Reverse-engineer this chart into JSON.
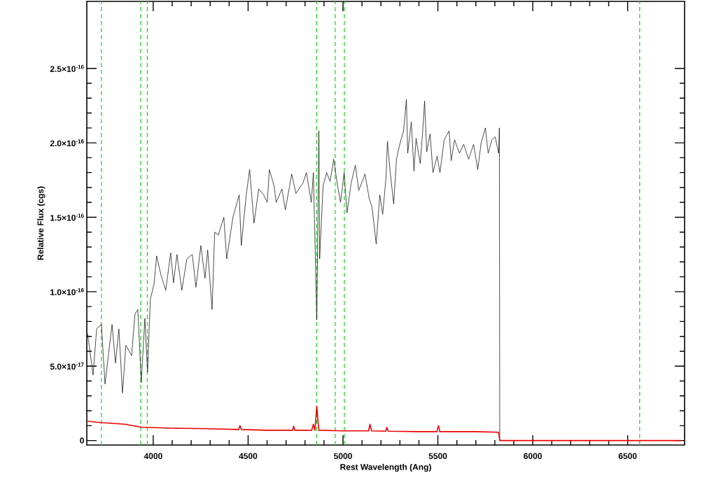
{
  "chart_data": {
    "type": "line",
    "xlabel": "Rest Wavelength (Ang)",
    "ylabel": "Relative Flux (cgs)",
    "xlim": [
      3650,
      6800
    ],
    "ylim": [
      -3e-18,
      2.95e-16
    ],
    "xticks": [
      4000,
      4500,
      5000,
      5500,
      6000,
      6500
    ],
    "yticks": [
      {
        "value": 0,
        "label": "0"
      },
      {
        "value": 5e-17,
        "label": "5.0×10$^{-17}$"
      },
      {
        "value": 1e-16,
        "label": "1.0×10$^{-16}$"
      },
      {
        "value": 1.5e-16,
        "label": "1.5×10$^{-16}$"
      },
      {
        "value": 2e-16,
        "label": "2.0×10$^{-16}$"
      },
      {
        "value": 2.5e-16,
        "label": "2.5×10$^{-16}$"
      }
    ],
    "grid": false,
    "marker": "none",
    "line_style": "solid",
    "ref_lines": [
      {
        "axis": "x",
        "value": 3727,
        "color": "#22dd22",
        "line_style": "dashed"
      },
      {
        "axis": "x",
        "value": 3934,
        "color": "#22dd22",
        "line_style": "dashed"
      },
      {
        "axis": "x",
        "value": 3969,
        "color": "#22dd22",
        "line_style": "dashed"
      },
      {
        "axis": "x",
        "value": 4861,
        "color": "#22dd22",
        "line_style": "dashed"
      },
      {
        "axis": "x",
        "value": 4959,
        "color": "#22dd22",
        "line_style": "dashed"
      },
      {
        "axis": "x",
        "value": 5007,
        "color": "#22dd22",
        "line_style": "dashed"
      },
      {
        "axis": "x",
        "value": 6563,
        "color": "#22dd22",
        "line_style": "dashed"
      }
    ],
    "series": [
      {
        "color": "#000000",
        "x": [
          3654,
          3683,
          3702,
          3727,
          3746,
          3783,
          3801,
          3819,
          3838,
          3856,
          3886,
          3904,
          3919,
          3937,
          3956,
          3970,
          3985,
          4004,
          4018,
          4041,
          4066,
          4092,
          4107,
          4125,
          4151,
          4177,
          4206,
          4225,
          4251,
          4273,
          4287,
          4310,
          4324,
          4343,
          4372,
          4387,
          4420,
          4453,
          4464,
          4490,
          4508,
          4531,
          4556,
          4582,
          4601,
          4612,
          4637,
          4648,
          4678,
          4696,
          4730,
          4752,
          4789,
          4807,
          4833,
          4844,
          4862,
          4873,
          4877,
          4895,
          4914,
          4932,
          4951,
          4969,
          4987,
          5006,
          5021,
          5043,
          5065,
          5083,
          5116,
          5139,
          5153,
          5168,
          5175,
          5194,
          5209,
          5227,
          5234,
          5249,
          5267,
          5282,
          5301,
          5319,
          5334,
          5341,
          5360,
          5374,
          5385,
          5407,
          5419,
          5430,
          5441,
          5459,
          5474,
          5496,
          5511,
          5533,
          5559,
          5570,
          5588,
          5614,
          5636,
          5662,
          5688,
          5710,
          5728,
          5750,
          5765,
          5784,
          5802,
          5820,
          5824,
          5826
        ],
        "values": [
          7.2e-17,
          4.4e-17,
          7.5e-17,
          7.8e-17,
          3.8e-17,
          7.8e-17,
          5.2e-17,
          7.5e-17,
          3.2e-17,
          6.4e-17,
          5.7e-17,
          8.5e-17,
          8.8e-17,
          3.9e-17,
          8.2e-17,
          4.6e-17,
          9.5e-17,
          1.05e-16,
          1.24e-16,
          1.11e-16,
          1.01e-16,
          1.26e-16,
          1.06e-16,
          1.25e-16,
          1.01e-16,
          1.22e-16,
          1.25e-16,
          1.03e-16,
          1.31e-16,
          1.09e-16,
          1.28e-16,
          8.8e-17,
          1.4e-16,
          1.38e-16,
          1.5e-16,
          1.22e-16,
          1.5e-16,
          1.65e-16,
          1.31e-16,
          1.65e-16,
          1.82e-16,
          1.46e-16,
          1.69e-16,
          1.65e-16,
          1.6e-16,
          1.82e-16,
          1.71e-16,
          1.6e-16,
          1.69e-16,
          1.55e-16,
          1.79e-16,
          1.66e-16,
          1.73e-16,
          1.8e-16,
          1.6e-16,
          1.8e-16,
          8.1e-17,
          2.08e-16,
          1.22e-16,
          1.71e-16,
          1.8e-16,
          1.74e-16,
          1.89e-16,
          1.73e-16,
          1.6e-16,
          1.8e-16,
          1.53e-16,
          1.73e-16,
          1.85e-16,
          1.68e-16,
          1.79e-16,
          1.62e-16,
          1.57e-16,
          1.4e-16,
          1.32e-16,
          1.65e-16,
          1.52e-16,
          1.77e-16,
          2.01e-16,
          1.8e-16,
          1.59e-16,
          1.89e-16,
          2e-16,
          2.08e-16,
          2.29e-16,
          1.93e-16,
          2.14e-16,
          1.81e-16,
          2.03e-16,
          1.86e-16,
          2.06e-16,
          2.28e-16,
          1.94e-16,
          2.06e-16,
          1.8e-16,
          1.91e-16,
          1.8e-16,
          2.02e-16,
          2.08e-16,
          1.88e-16,
          2.02e-16,
          1.93e-16,
          1.99e-16,
          1.89e-16,
          1.99e-16,
          1.82e-16,
          2e-16,
          2.1e-16,
          1.93e-16,
          2.02e-16,
          2.04e-16,
          1.93e-16,
          2.1e-16,
          0
        ]
      },
      {
        "color": "#ee0000",
        "x": [
          3654,
          3727,
          3850,
          3937,
          4100,
          4300,
          4450,
          4457,
          4465,
          4600,
          4735,
          4740,
          4746,
          4835,
          4844,
          4852,
          4862,
          4872,
          5000,
          5135,
          5142,
          5150,
          5225,
          5231,
          5238,
          5400,
          5495,
          5503,
          5510,
          5700,
          5820,
          5826,
          6780
        ],
        "values": [
          1.3e-17,
          1.2e-17,
          1.1e-17,
          9e-18,
          8.3e-18,
          7.9e-18,
          7.4e-18,
          1e-17,
          7.4e-18,
          6.9e-18,
          6.9e-18,
          9.7e-18,
          6.9e-18,
          6.9e-18,
          1.1e-17,
          6.9e-18,
          2.3e-17,
          6.9e-18,
          6.5e-18,
          6.5e-18,
          1.1e-17,
          6.5e-18,
          6.3e-18,
          8.8e-18,
          6.3e-18,
          6e-18,
          6e-18,
          1e-17,
          6e-18,
          6e-18,
          5.6e-18,
          0,
          0
        ]
      }
    ]
  }
}
